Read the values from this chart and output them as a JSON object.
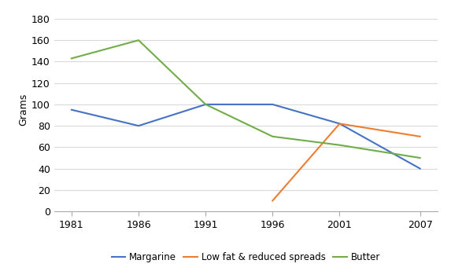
{
  "years": [
    1981,
    1986,
    1991,
    1996,
    2001,
    2007
  ],
  "margarine": [
    95,
    80,
    100,
    100,
    82,
    40
  ],
  "low_fat": [
    null,
    null,
    null,
    10,
    82,
    70
  ],
  "butter": [
    143,
    160,
    100,
    70,
    62,
    50
  ],
  "ylabel": "Grams",
  "ylim": [
    0,
    190
  ],
  "yticks": [
    0,
    20,
    40,
    60,
    80,
    100,
    120,
    140,
    160,
    180
  ],
  "legend_labels": [
    "Margarine",
    "Low fat & reduced spreads",
    "Butter"
  ],
  "colors": {
    "margarine": "#4472C4",
    "low_fat": "#ED7D31",
    "butter": "#70AD47"
  },
  "background_color": "#FFFFFF",
  "grid_color": "#D9D9D9"
}
